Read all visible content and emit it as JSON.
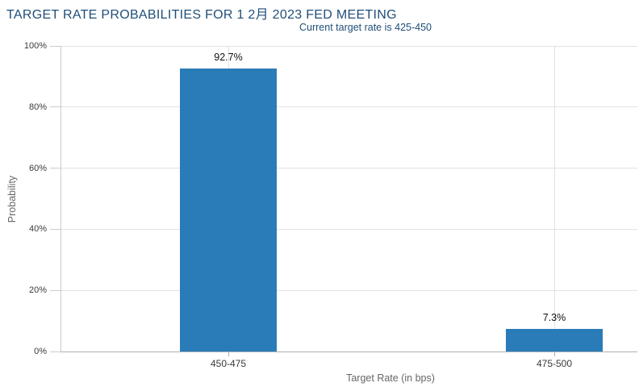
{
  "chart_data": {
    "type": "bar",
    "title": "TARGET RATE PROBABILITIES FOR 1 2月 2023 FED MEETING",
    "subtitle": "Current target rate is 425-450",
    "categories": [
      "450-475",
      "475-500"
    ],
    "values": [
      92.7,
      7.3
    ],
    "value_labels": [
      "92.7%",
      "7.3%"
    ],
    "xlabel": "Target Rate (in bps)",
    "ylabel": "Probability",
    "ylim": [
      0,
      100
    ],
    "yticks": [
      0,
      20,
      40,
      60,
      80,
      100
    ],
    "ytick_labels": [
      "0%",
      "20%",
      "40%",
      "60%",
      "80%",
      "100%"
    ],
    "grid": true,
    "legend": "none",
    "colors": {
      "bar": "#2a7cb8",
      "title": "#1f4e79",
      "subtitle": "#1f4e79",
      "gridline": "#e2e2e2",
      "axis_line": "#b0b0b0",
      "y_axis_line": "#cccccc",
      "tick_label": "#3a3a3a",
      "axis_title": "#666666",
      "value_label": "#111111"
    }
  }
}
